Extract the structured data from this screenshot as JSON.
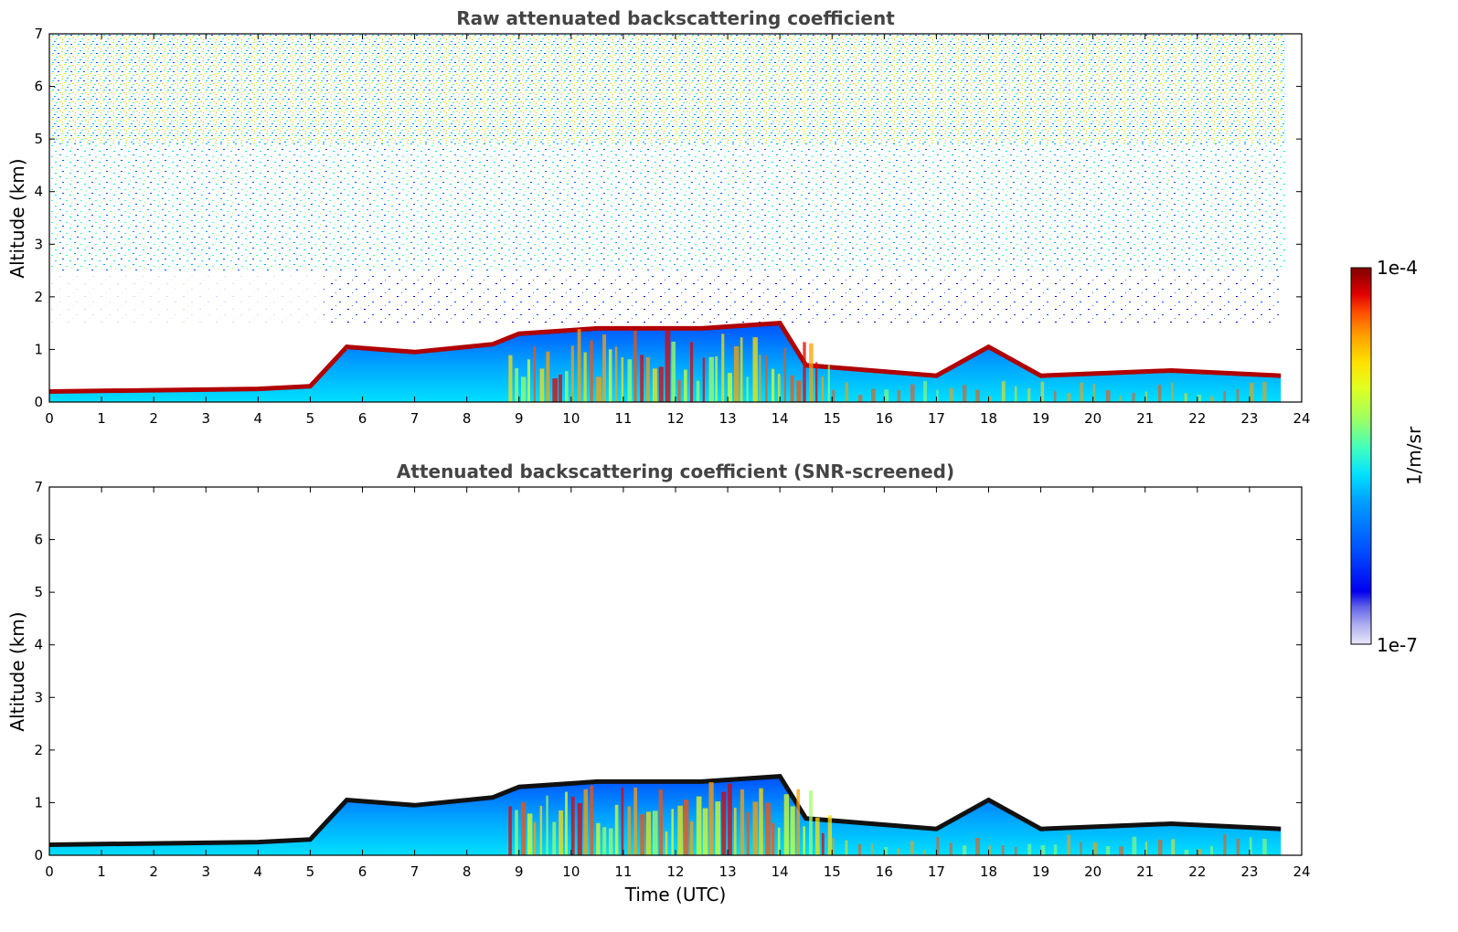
{
  "chart_data": [
    {
      "type": "heatmap",
      "title": "Raw attenuated backscattering coefficient",
      "xlabel": "",
      "ylabel": "Altitude (km)",
      "xlim": [
        0,
        24
      ],
      "ylim": [
        0,
        7
      ],
      "xticks": [
        "0",
        "1",
        "2",
        "3",
        "4",
        "5",
        "6",
        "7",
        "8",
        "9",
        "10",
        "11",
        "12",
        "13",
        "14",
        "15",
        "16",
        "17",
        "18",
        "19",
        "20",
        "21",
        "22",
        "23",
        "24"
      ],
      "yticks": [
        "0",
        "1",
        "2",
        "3",
        "4",
        "5",
        "6",
        "7"
      ],
      "data_end_time": 23.6,
      "boundary_layer_top_km": [
        {
          "t": 0,
          "z": 0.2
        },
        {
          "t": 4,
          "z": 0.25
        },
        {
          "t": 5,
          "z": 0.3
        },
        {
          "t": 5.7,
          "z": 1.05
        },
        {
          "t": 7,
          "z": 0.95
        },
        {
          "t": 8.5,
          "z": 1.1
        },
        {
          "t": 9,
          "z": 1.3
        },
        {
          "t": 10.5,
          "z": 1.4
        },
        {
          "t": 12.5,
          "z": 1.4
        },
        {
          "t": 14,
          "z": 1.5
        },
        {
          "t": 14.5,
          "z": 0.7
        },
        {
          "t": 17,
          "z": 0.5
        },
        {
          "t": 18,
          "z": 1.05
        },
        {
          "t": 19,
          "z": 0.5
        },
        {
          "t": 21.5,
          "z": 0.6
        },
        {
          "t": 23.6,
          "z": 0.5
        }
      ],
      "noise": "noisy background increasing with altitude; dense yellow/green noise above 5 km"
    },
    {
      "type": "heatmap",
      "title": "Attenuated backscattering coefficient (SNR-screened)",
      "xlabel": "Time (UTC)",
      "ylabel": "Altitude (km)",
      "xlim": [
        0,
        24
      ],
      "ylim": [
        0,
        7
      ],
      "xticks": [
        "0",
        "1",
        "2",
        "3",
        "4",
        "5",
        "6",
        "7",
        "8",
        "9",
        "10",
        "11",
        "12",
        "13",
        "14",
        "15",
        "16",
        "17",
        "18",
        "19",
        "20",
        "21",
        "22",
        "23",
        "24"
      ],
      "yticks": [
        "0",
        "1",
        "2",
        "3",
        "4",
        "5",
        "6",
        "7"
      ],
      "data_end_time": 23.6,
      "noise": "screened: noise removed, only aerosol layer below ~1.5 km remains"
    }
  ],
  "colorbar": {
    "max_label": "1e-4",
    "min_label": "1e-7",
    "units": "1/m/sr",
    "colormap": "jet",
    "colors": [
      "#e8e8f8",
      "#b0b0f0",
      "#6060e8",
      "#0000f0",
      "#0050ff",
      "#00a0ff",
      "#00e0ff",
      "#40ffc0",
      "#a0ff60",
      "#e0ff20",
      "#ffe000",
      "#ffa000",
      "#ff5000",
      "#e00000",
      "#800000"
    ]
  }
}
